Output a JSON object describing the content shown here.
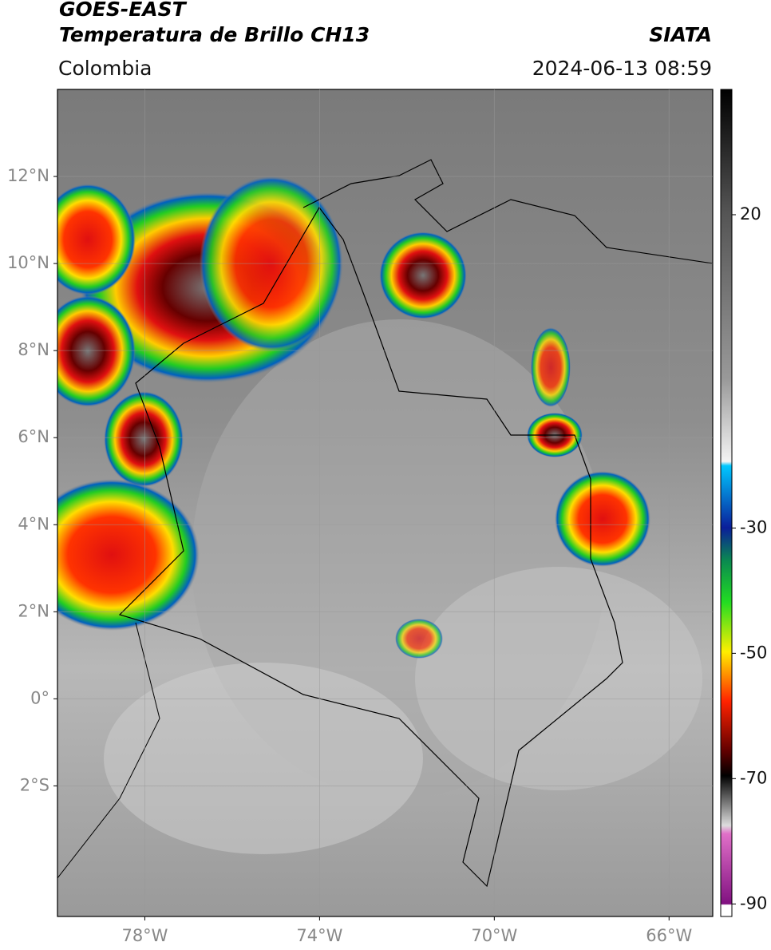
{
  "header": {
    "title": "GOES-EAST",
    "subtitle": "Temperatura de Brillo CH13",
    "source": "SIATA",
    "region": "Colombia",
    "datetime": "2024-06-13 08:59"
  },
  "map": {
    "xlim": [
      -80,
      -65
    ],
    "ylim": [
      -5,
      14
    ],
    "xticks": [
      {
        "value": -78,
        "label": "78°W"
      },
      {
        "value": -74,
        "label": "74°W"
      },
      {
        "value": -70,
        "label": "70°W"
      },
      {
        "value": -66,
        "label": "66°W"
      }
    ],
    "yticks": [
      {
        "value": 12,
        "label": "12°N"
      },
      {
        "value": 10,
        "label": "10°N"
      },
      {
        "value": 8,
        "label": "8°N"
      },
      {
        "value": 6,
        "label": "6°N"
      },
      {
        "value": 4,
        "label": "4°N"
      },
      {
        "value": 2,
        "label": "2°N"
      },
      {
        "value": 0,
        "label": "0°"
      },
      {
        "value": -2,
        "label": "2°S"
      }
    ],
    "grid": true
  },
  "colorbar": {
    "lim": [
      -92,
      40
    ],
    "ticks": [
      20,
      -30,
      -50,
      -70,
      -90
    ]
  }
}
